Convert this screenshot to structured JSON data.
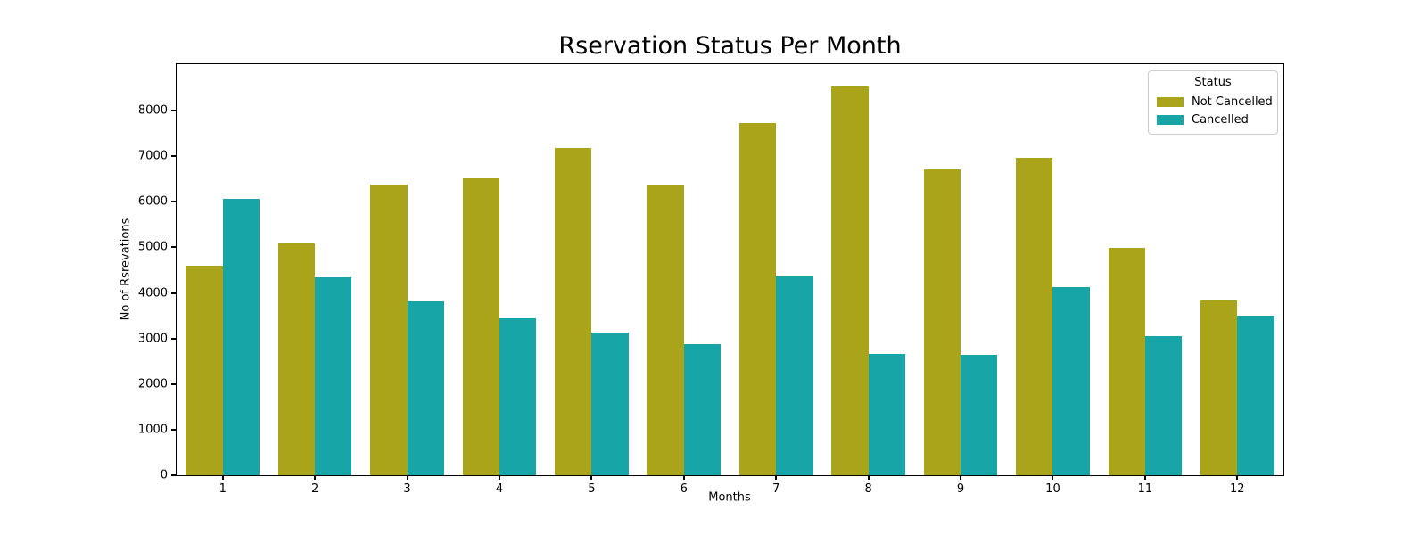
{
  "chart_data": {
    "type": "bar",
    "title": "Rservation Status Per Month",
    "xlabel": "Months",
    "ylabel": "No of Rsrevations",
    "categories": [
      "1",
      "2",
      "3",
      "4",
      "5",
      "6",
      "7",
      "8",
      "9",
      "10",
      "11",
      "12"
    ],
    "series": [
      {
        "name": "Not Cancelled",
        "color": "#aaa41b",
        "values": [
          4600,
          5090,
          6380,
          6510,
          7190,
          6350,
          7720,
          8540,
          6710,
          6960,
          4980,
          3840
        ]
      },
      {
        "name": "Cancelled",
        "color": "#18a5a7",
        "values": [
          6060,
          4350,
          3820,
          3440,
          3140,
          2880,
          4370,
          2670,
          2650,
          4130,
          3060,
          3510
        ]
      }
    ],
    "ylim": [
      0,
      9020
    ],
    "yticks": [
      0,
      1000,
      2000,
      3000,
      4000,
      5000,
      6000,
      7000,
      8000
    ],
    "legend": {
      "title": "Status",
      "position": "upper right"
    },
    "grid": false,
    "bar_group_width_fraction": 0.8,
    "background_color": "#ffffff",
    "spine_color": "#000000"
  }
}
